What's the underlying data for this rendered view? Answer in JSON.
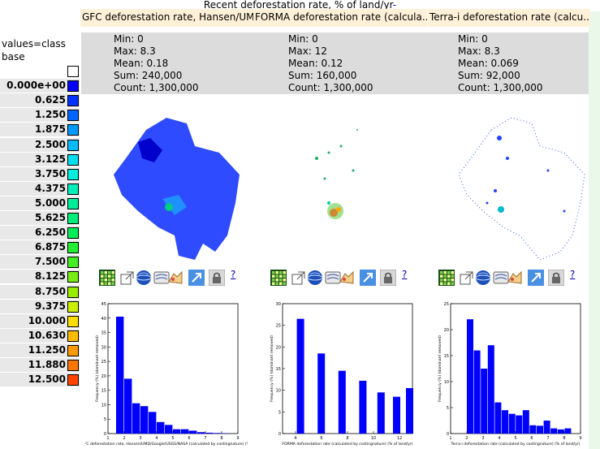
{
  "header": {
    "title": "Recent deforestation rate, % of land/yr",
    "title_link": "-"
  },
  "layers": [
    {
      "title": "GFC deforestation rate, Hansen/UM..",
      "min": "Min: 0",
      "max": "Max: 8.3",
      "mean": "Mean: 0.18",
      "sum": "Sum: 240,000",
      "count": "Count: 1,300,000"
    },
    {
      "title": "FORMA deforestation rate (calcula..",
      "min": "Min: 0",
      "max": "Max: 12",
      "mean": "Mean: 0.12",
      "sum": "Sum: 160,000",
      "count": "Count: 1,300,000"
    },
    {
      "title": "Terra-i deforestation rate (calcu..",
      "min": "Min: 0",
      "max": "Max: 8.3",
      "mean": "Mean: 0.069",
      "sum": "Sum: 92,000",
      "count": "Count: 1,300,000"
    }
  ],
  "legend": {
    "header_line1": "values=class",
    "header_line2": "base",
    "classes": [
      {
        "label": "",
        "color": "#ffffff"
      },
      {
        "label": "0.000e+00",
        "color": "#0000ff"
      },
      {
        "label": "0.625",
        "color": "#0033ff"
      },
      {
        "label": "1.250",
        "color": "#0066ff"
      },
      {
        "label": "1.875",
        "color": "#0099ff"
      },
      {
        "label": "2.500",
        "color": "#00bbff"
      },
      {
        "label": "3.125",
        "color": "#00ddee"
      },
      {
        "label": "3.750",
        "color": "#00eedd"
      },
      {
        "label": "4.375",
        "color": "#00eebb"
      },
      {
        "label": "5.000",
        "color": "#00ee99"
      },
      {
        "label": "5.625",
        "color": "#00ee77"
      },
      {
        "label": "6.250",
        "color": "#00ee55"
      },
      {
        "label": "6.875",
        "color": "#22ee33"
      },
      {
        "label": "7.500",
        "color": "#44ee22"
      },
      {
        "label": "8.125",
        "color": "#77ee11"
      },
      {
        "label": "8.750",
        "color": "#99ee00"
      },
      {
        "label": "9.375",
        "color": "#ccee00"
      },
      {
        "label": "10.000",
        "color": "#ffdd00"
      },
      {
        "label": "10.630",
        "color": "#ffbb00"
      },
      {
        "label": "11.250",
        "color": "#ff9900"
      },
      {
        "label": "11.880",
        "color": "#ff7700"
      },
      {
        "label": "12.500",
        "color": "#ff4400"
      }
    ]
  },
  "toolbar": {
    "icons": [
      "grid-icon",
      "export-icon",
      "globe-icon",
      "map-layer-icon",
      "stamp-icon",
      "link-arrow-icon",
      "lock-icon"
    ],
    "help_label": "?"
  },
  "chart_data": [
    {
      "type": "bar",
      "title": "",
      "xlabel": "FC deforestation rate, Hansen/UMD/Google/USGS/NASA (calculated by costingnature) (% of lan",
      "ylabel": "Frequency (%) (dominant removed)",
      "xlim": [
        1,
        9
      ],
      "ylim": [
        0,
        45
      ],
      "xticks": [
        "1",
        "2",
        "3",
        "4",
        "5",
        "6",
        "7",
        "8",
        "9"
      ],
      "yticks": [
        "0",
        "5",
        "10",
        "15",
        "20",
        "25",
        "30",
        "35",
        "40",
        "45"
      ],
      "bin_width": 0.5,
      "x": [
        1.5,
        2.0,
        2.5,
        3.0,
        3.5,
        4.0,
        4.5,
        5.0,
        5.5,
        6.0,
        6.5,
        7.0,
        7.5,
        8.0
      ],
      "values": [
        40.5,
        19,
        10.5,
        9.5,
        7.5,
        4,
        3,
        1.5,
        1.5,
        1,
        0.5,
        0.3,
        0.2,
        0.1
      ],
      "color": "#0000ff"
    },
    {
      "type": "bar",
      "title": "",
      "xlabel": "FORMA deforestation rate (calculated by costingnature) (% of land/yr)",
      "ylabel": "Frequency (%) (dominant removed)",
      "xlim": [
        3,
        13
      ],
      "ylim": [
        0,
        30
      ],
      "xticks": [
        "4",
        "6",
        "8",
        "10",
        "12"
      ],
      "yticks": [
        "0",
        "5",
        "10",
        "15",
        "20",
        "25",
        "30"
      ],
      "bin_width": 0.6,
      "x": [
        4.1,
        5.7,
        7.3,
        8.9,
        10.3,
        11.5,
        12.5
      ],
      "values": [
        26.5,
        18.5,
        14.5,
        12.2,
        9.5,
        8.5,
        10.5
      ],
      "color": "#0000ff"
    },
    {
      "type": "bar",
      "title": "",
      "xlabel": "Terra-i deforestation rate (calculated by costingnature) (% of land/yr)",
      "ylabel": "Frequency (%) (dominant removed)",
      "xlim": [
        1,
        9
      ],
      "ylim": [
        0,
        25
      ],
      "xticks": [
        "1",
        "2",
        "3",
        "4",
        "5",
        "6",
        "7",
        "8",
        "9"
      ],
      "yticks": [
        "0",
        "5",
        "10",
        "15",
        "20",
        "25"
      ],
      "bin_width": 0.43,
      "x": [
        2.0,
        2.43,
        2.86,
        3.29,
        3.72,
        4.15,
        4.58,
        5.01,
        5.44,
        5.87,
        6.3,
        6.73,
        7.16,
        7.59,
        8.02
      ],
      "values": [
        22,
        16,
        12.5,
        17,
        6,
        4.5,
        3.8,
        3.5,
        4.5,
        1.6,
        1.5,
        2.5,
        1,
        0.8,
        1
      ],
      "color": "#0000ff"
    }
  ]
}
